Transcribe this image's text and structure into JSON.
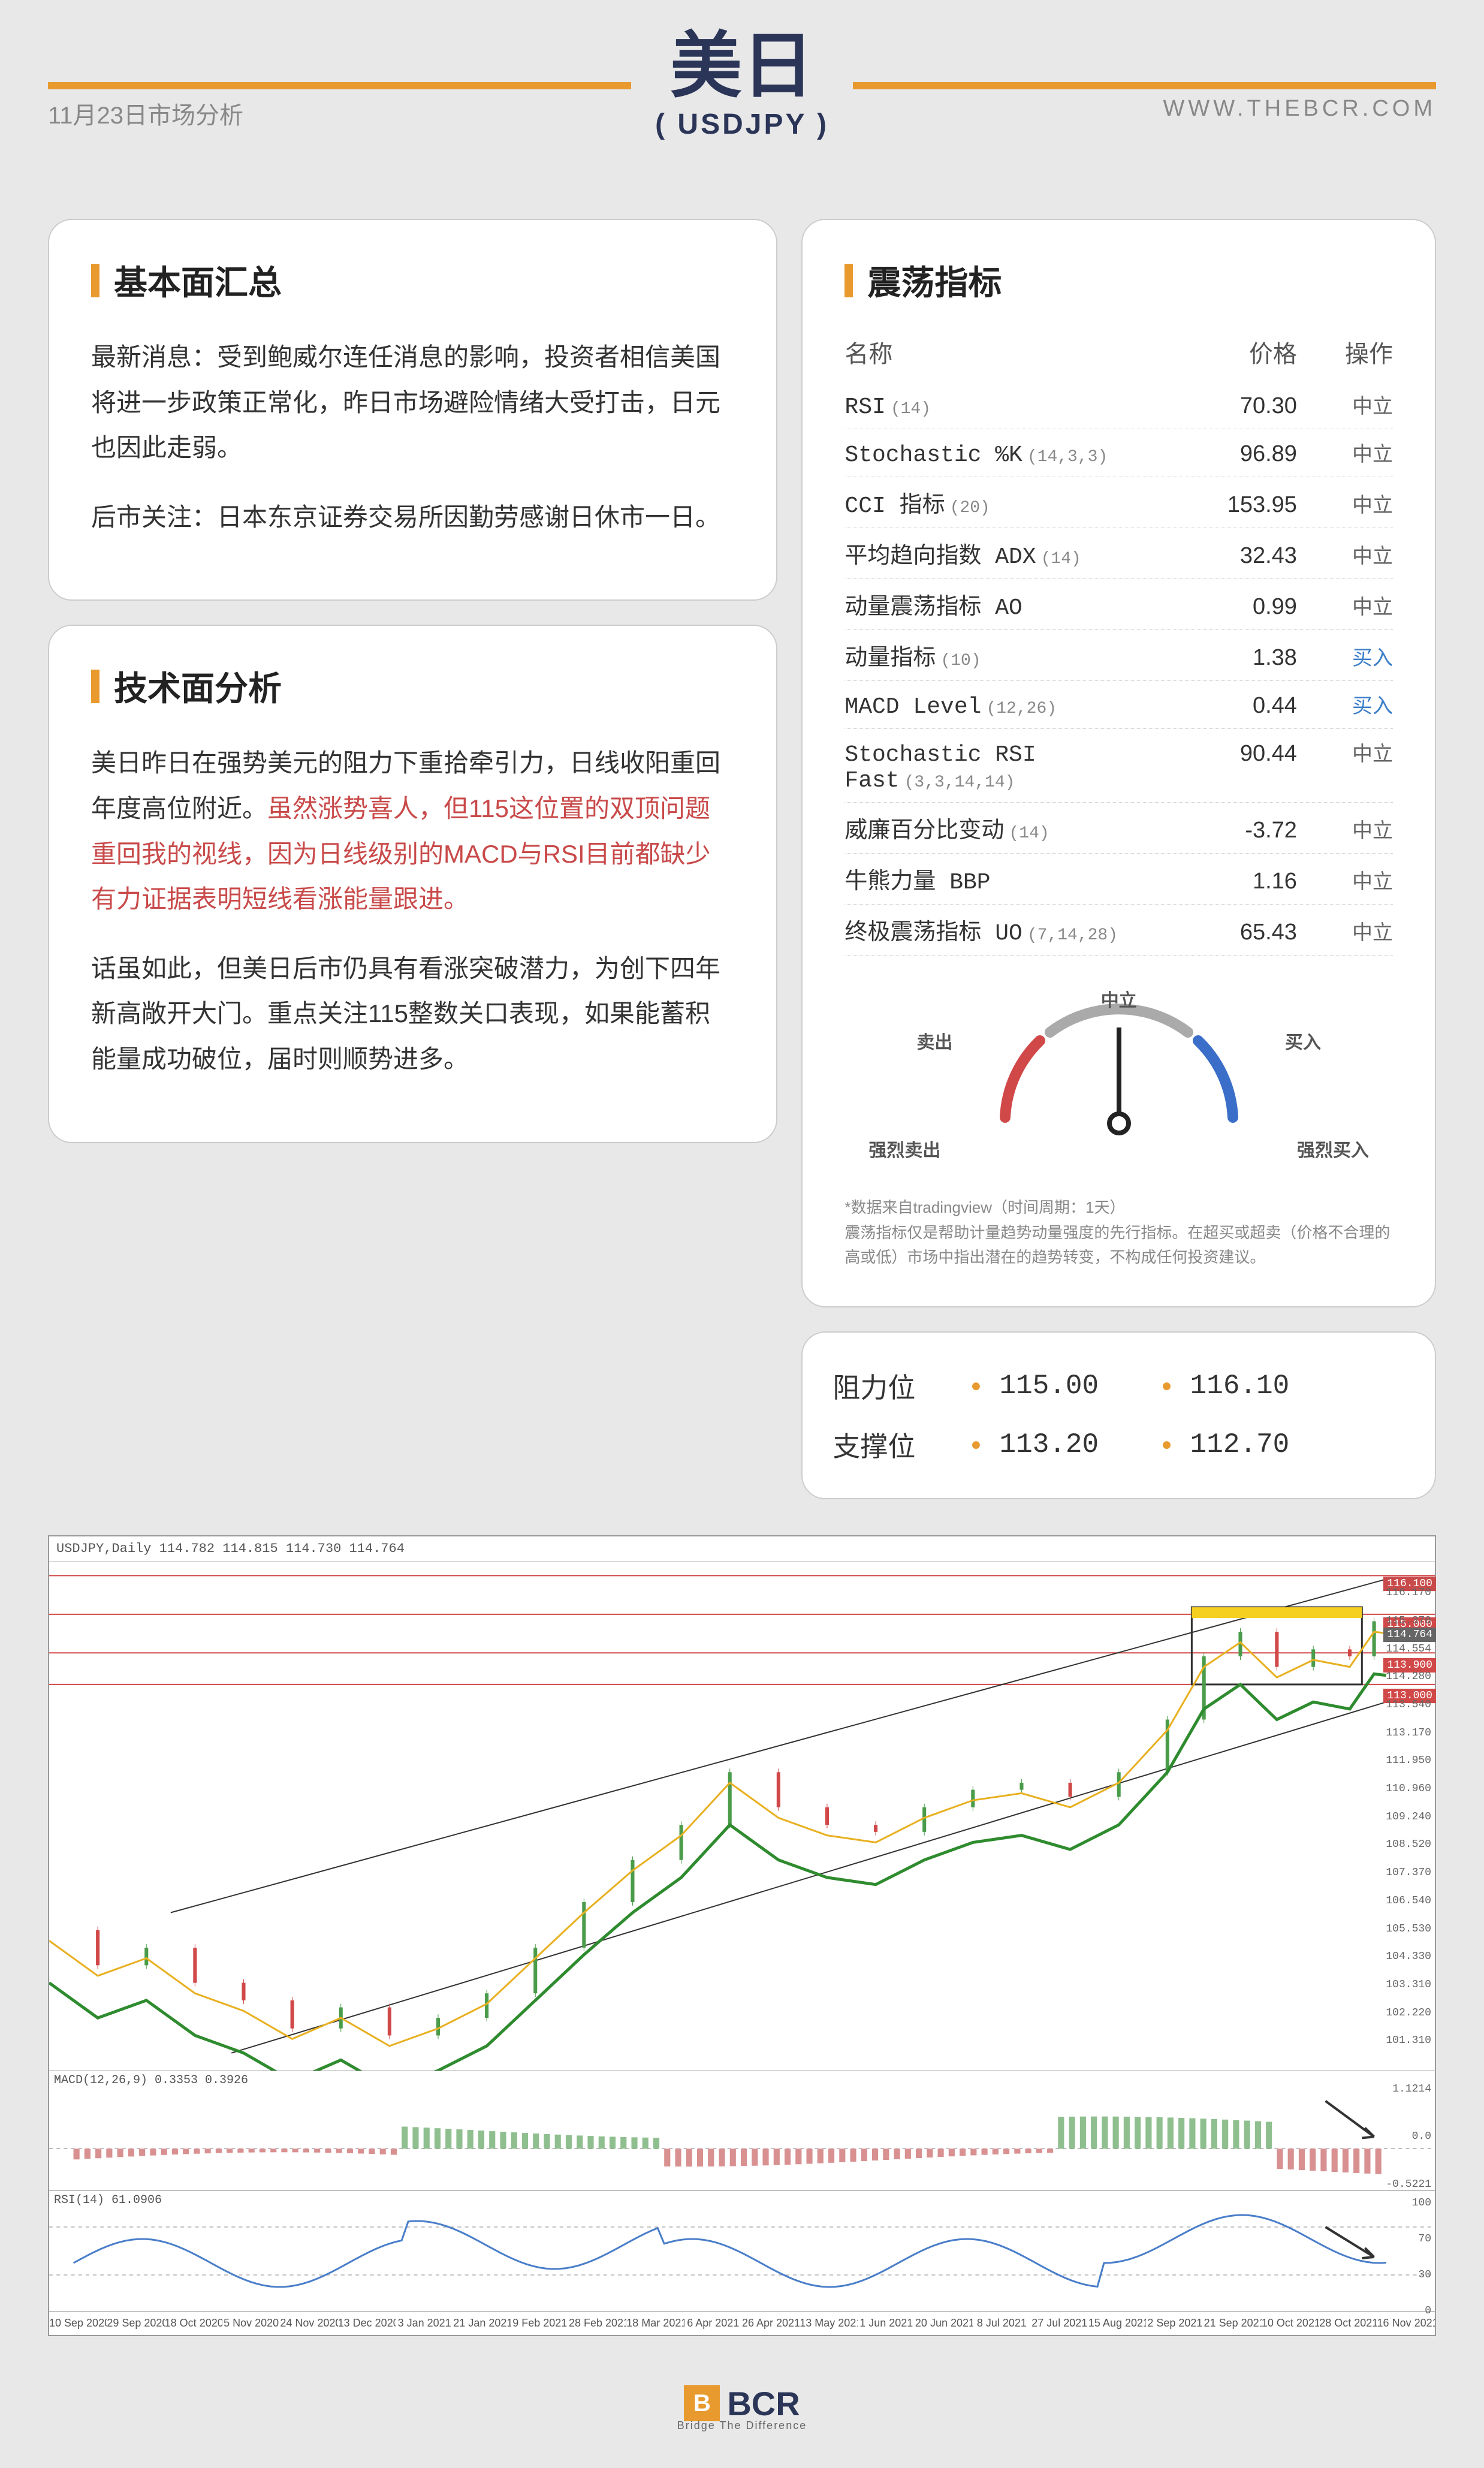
{
  "header": {
    "title": "美日",
    "subtitle": "( USDJPY )",
    "date": "11月23日市场分析",
    "url": "WWW.THEBCR.COM"
  },
  "fundamentals": {
    "title": "基本面汇总",
    "p1": "最新消息：受到鲍威尔连任消息的影响，投资者相信美国将进一步政策正常化，昨日市场避险情绪大受打击，日元也因此走弱。",
    "p2": "后市关注：日本东京证券交易所因勤劳感谢日休市一日。"
  },
  "technical": {
    "title": "技术面分析",
    "p1a": "美日昨日在强势美元的阻力下重拾牵引力，日线收阳重回年度高位附近。",
    "p1b": "虽然涨势喜人，但115这位置的双顶问题重回我的视线，因为日线级别的MACD与RSI目前都缺少有力证据表明短线看涨能量跟进。",
    "p2": "话虽如此，但美日后市仍具有看涨突破潜力，为创下四年新高敞开大门。重点关注115整数关口表现，如果能蓄积能量成功破位，届时则顺势进多。"
  },
  "oscillators": {
    "title": "震荡指标",
    "headers": {
      "name": "名称",
      "price": "价格",
      "action": "操作"
    },
    "rows": [
      {
        "name": "RSI",
        "param": "(14)",
        "price": "70.30",
        "action": "中立",
        "actionClass": "action-neutral"
      },
      {
        "name": "Stochastic %K",
        "param": "(14,3,3)",
        "price": "96.89",
        "action": "中立",
        "actionClass": "action-neutral"
      },
      {
        "name": "CCI 指标",
        "param": "(20)",
        "price": "153.95",
        "action": "中立",
        "actionClass": "action-neutral"
      },
      {
        "name": "平均趋向指数 ADX",
        "param": "(14)",
        "price": "32.43",
        "action": "中立",
        "actionClass": "action-neutral"
      },
      {
        "name": "动量震荡指标 AO",
        "param": "",
        "price": "0.99",
        "action": "中立",
        "actionClass": "action-neutral"
      },
      {
        "name": "动量指标",
        "param": "(10)",
        "price": "1.38",
        "action": "买入",
        "actionClass": "action-buy"
      },
      {
        "name": "MACD Level",
        "param": "(12,26)",
        "price": "0.44",
        "action": "买入",
        "actionClass": "action-buy"
      },
      {
        "name": "Stochastic RSI Fast",
        "param": "(3,3,14,14)",
        "price": "90.44",
        "action": "中立",
        "actionClass": "action-neutral"
      },
      {
        "name": "威廉百分比变动",
        "param": "(14)",
        "price": "-3.72",
        "action": "中立",
        "actionClass": "action-neutral"
      },
      {
        "name": "牛熊力量 BBP",
        "param": "",
        "price": "1.16",
        "action": "中立",
        "actionClass": "action-neutral"
      },
      {
        "name": "终极震荡指标 UO",
        "param": "(7,14,28)",
        "price": "65.43",
        "action": "中立",
        "actionClass": "action-neutral"
      }
    ],
    "gauge": {
      "labels": {
        "strongSell": "强烈卖出",
        "sell": "卖出",
        "neutral": "中立",
        "buy": "买入",
        "strongBuy": "强烈买入"
      },
      "colors": {
        "sell": "#d14848",
        "neutral": "#888888",
        "buy": "#3a6ec9"
      },
      "needleAngle": 90
    },
    "disclaimer": "*数据来自tradingview（时间周期：1天）\n震荡指标仅是帮助计量趋势动量强度的先行指标。在超买或超卖（价格不合理的高或低）市场中指出潜在的趋势转变，不构成任何投资建议。"
  },
  "levels": {
    "resistance": {
      "label": "阻力位",
      "v1": "115.00",
      "v2": "116.10"
    },
    "support": {
      "label": "支撑位",
      "v1": "113.20",
      "v2": "112.70"
    }
  },
  "chart": {
    "header": "USDJPY,Daily 114.782 114.815 114.730 114.764",
    "ylim": [
      102,
      116.5
    ],
    "yticks": [
      "116.170",
      "115.370",
      "114.554",
      "114.280",
      "113.540",
      "113.170",
      "111.950",
      "110.960",
      "109.240",
      "108.520",
      "107.370",
      "106.540",
      "105.530",
      "104.330",
      "103.310",
      "102.220",
      "101.310"
    ],
    "priceTags": [
      {
        "v": "116.100",
        "topPct": 3
      },
      {
        "v": "115.000",
        "topPct": 11,
        "bg": "#d14848"
      },
      {
        "v": "114.764",
        "topPct": 13,
        "bg": "#666"
      },
      {
        "v": "113.900",
        "topPct": 19,
        "bg": "#d14848"
      },
      {
        "v": "113.000",
        "topPct": 25,
        "bg": "#d14848"
      }
    ],
    "macd": {
      "title": "MACD(12,26,9) 0.3353 0.3926",
      "yticks": [
        "1.1214",
        "0.0",
        "-0.5221"
      ]
    },
    "rsi": {
      "title": "RSI(14) 61.0906",
      "yticks": [
        "100",
        "70",
        "30",
        "0"
      ]
    },
    "xticks": [
      "10 Sep 2020",
      "29 Sep 2020",
      "18 Oct 2020",
      "5 Nov 2020",
      "24 Nov 2020",
      "13 Dec 2020",
      "3 Jan 2021",
      "21 Jan 2021",
      "9 Feb 2021",
      "28 Feb 2021",
      "18 Mar 2021",
      "6 Apr 2021",
      "26 Apr 2021",
      "13 May 2021",
      "1 Jun 2021",
      "20 Jun 2021",
      "8 Jul 2021",
      "27 Jul 2021",
      "15 Aug 2021",
      "2 Sep 2021",
      "21 Sep 2021",
      "10 Oct 2021",
      "28 Oct 2021",
      "16 Nov 2021"
    ],
    "colors": {
      "candleUp": "#4a9c4a",
      "candleDown": "#d14848",
      "ma1": "#e8b020",
      "ma2": "#2e8b2e",
      "trendline": "#333",
      "hline": "#d14848",
      "highlight": "#f5d020"
    }
  },
  "footer": {
    "brand": "BCR",
    "tagline": "Bridge The Difference"
  }
}
